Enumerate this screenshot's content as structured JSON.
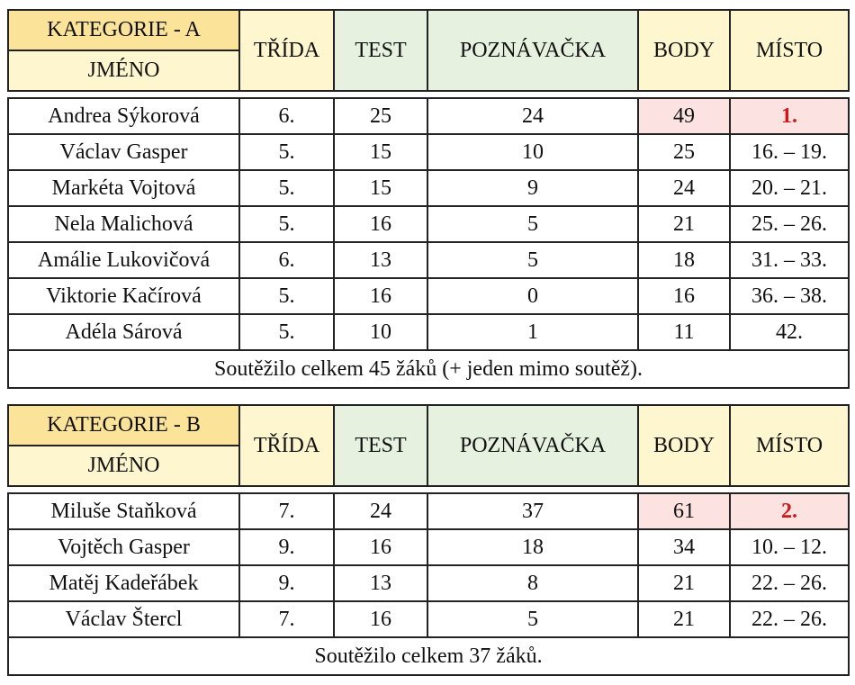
{
  "headers": {
    "jmeno": "JMÉNO",
    "trida": "TŘÍDA",
    "test": "TEST",
    "poznavacka": "POZNÁVAČKA",
    "body": "BODY",
    "misto": "MÍSTO"
  },
  "categoryA": {
    "title": "KATEGORIE - A",
    "rows": [
      {
        "jmeno": "Andrea Sýkorová",
        "trida": "6.",
        "test": "25",
        "poznavacka": "24",
        "body": "49",
        "misto": "1."
      },
      {
        "jmeno": "Václav Gasper",
        "trida": "5.",
        "test": "15",
        "poznavacka": "10",
        "body": "25",
        "misto": "16. – 19."
      },
      {
        "jmeno": "Markéta Vojtová",
        "trida": "5.",
        "test": "15",
        "poznavacka": "9",
        "body": "24",
        "misto": "20. – 21."
      },
      {
        "jmeno": "Nela Malichová",
        "trida": "5.",
        "test": "16",
        "poznavacka": "5",
        "body": "21",
        "misto": "25. – 26."
      },
      {
        "jmeno": "Amálie Lukovičová",
        "trida": "6.",
        "test": "13",
        "poznavacka": "5",
        "body": "18",
        "misto": "31. – 33."
      },
      {
        "jmeno": "Viktorie Kačírová",
        "trida": "5.",
        "test": "16",
        "poznavacka": "0",
        "body": "16",
        "misto": "36. – 38."
      },
      {
        "jmeno": "Adéla Sárová",
        "trida": "5.",
        "test": "10",
        "poznavacka": "1",
        "body": "11",
        "misto": "42."
      }
    ],
    "summary": "Soutěžilo celkem 45 žáků (+ jeden mimo soutěž)."
  },
  "categoryB": {
    "title": "KATEGORIE - B",
    "rows": [
      {
        "jmeno": "Miluše Staňková",
        "trida": "7.",
        "test": "24",
        "poznavacka": "37",
        "body": "61",
        "misto": "2."
      },
      {
        "jmeno": "Vojtěch Gasper",
        "trida": "9.",
        "test": "16",
        "poznavacka": "18",
        "body": "34",
        "misto": "10. – 12."
      },
      {
        "jmeno": "Matěj Kadeřábek",
        "trida": "9.",
        "test": "13",
        "poznavacka": "8",
        "body": "21",
        "misto": "22. – 26."
      },
      {
        "jmeno": "Václav Štercl",
        "trida": "7.",
        "test": "16",
        "poznavacka": "5",
        "body": "21",
        "misto": "22. – 26."
      }
    ],
    "summary": "Soutěžilo celkem 37 žáků."
  },
  "colors": {
    "category_header": "#fbe39a",
    "light_yellow": "#fdf6cf",
    "light_green": "#e6f2df",
    "highlight_pink": "#fde2e2",
    "top_place_red": "#d01818"
  }
}
